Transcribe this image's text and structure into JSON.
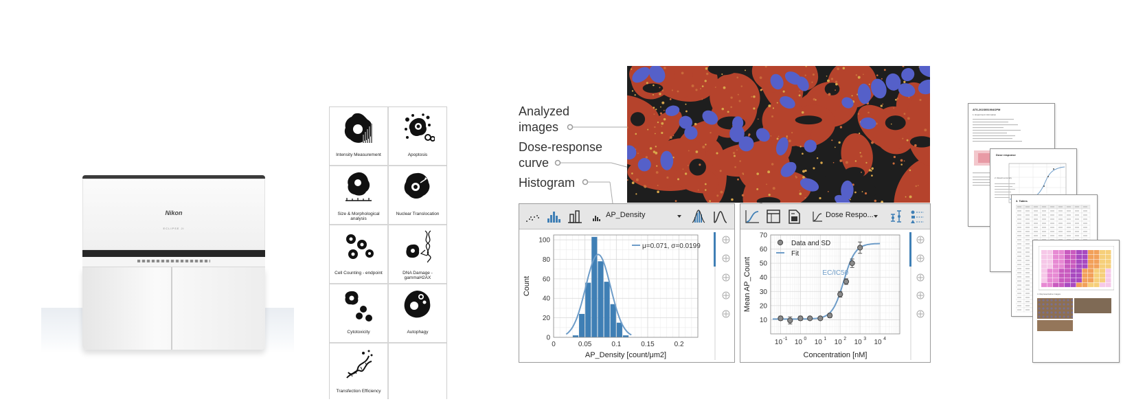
{
  "instrument": {
    "brand": "Nikon",
    "model": "ECLIPSE Ji"
  },
  "assays": [
    {
      "label": "Intensity Measurement",
      "icon": "intensity-measurement-icon"
    },
    {
      "label": "Apoptosis",
      "icon": "apoptosis-icon"
    },
    {
      "label": "Size & Morphological analysis",
      "icon": "morphology-icon"
    },
    {
      "label": "Nuclear Translocation",
      "icon": "nuclear-translocation-icon"
    },
    {
      "label": "Cell Counting - endpoint",
      "icon": "cell-counting-icon"
    },
    {
      "label": "DNA Damage - gammaH2AX",
      "icon": "dna-damage-icon"
    },
    {
      "label": "Cytotoxicity",
      "icon": "cytotoxicity-icon"
    },
    {
      "label": "Autophagy",
      "icon": "autophagy-icon"
    },
    {
      "label": "Transfection Efficiency",
      "icon": "transfection-icon"
    }
  ],
  "callouts": {
    "analyzed_line1": "Analyzed",
    "analyzed_line2": "images",
    "dose_line1": "Dose-response",
    "dose_line2": "curve",
    "histogram": "Histogram"
  },
  "histogram_panel": {
    "dropdown": "AP_Density",
    "icons": [
      "scatter-icon",
      "histogram-icon",
      "bar-chart-icon",
      "density-dropdown-icon",
      "distribution-fit-icon",
      "curve-icon"
    ]
  },
  "dose_panel": {
    "dropdown": "Dose Respo...",
    "icons": [
      "dose-curve-icon",
      "table-icon",
      "report-icon",
      "dose-dropdown-icon",
      "error-bar-icon",
      "style-icon"
    ]
  },
  "colors": {
    "bar": "#3f7fb5",
    "fit": "#6d9cc8",
    "micro_bg": "#1e1e1e",
    "cytoplasm": "#b5432c",
    "nucleus": "#5560c9"
  },
  "chart_data": [
    {
      "type": "bar",
      "xlabel": "AP_Density [count/μm2]",
      "ylabel": "Count",
      "xlim": [
        0,
        0.23
      ],
      "ylim": [
        0,
        105
      ],
      "xticks": [
        0,
        0.05,
        0.1,
        0.15,
        0.2
      ],
      "xtick_labels": [
        "0",
        "0.05",
        "0.1",
        "0.15",
        "0.2"
      ],
      "yticks": [
        0,
        20,
        40,
        60,
        80,
        100
      ],
      "bin_width": 0.01,
      "bins": [
        {
          "x0": 0.03,
          "value": 2
        },
        {
          "x0": 0.04,
          "value": 24
        },
        {
          "x0": 0.05,
          "value": 56
        },
        {
          "x0": 0.06,
          "value": 103
        },
        {
          "x0": 0.07,
          "value": 78
        },
        {
          "x0": 0.08,
          "value": 57
        },
        {
          "x0": 0.09,
          "value": 34
        },
        {
          "x0": 0.1,
          "value": 15
        },
        {
          "x0": 0.11,
          "value": 2
        }
      ],
      "fit": {
        "mu": 0.071,
        "sigma": 0.0199,
        "peak": 85
      },
      "legend": "μ=0.071, σ=0.0199",
      "grid": true,
      "legend_position": "top-right"
    },
    {
      "type": "scatter",
      "xlabel": "Concentration [nM]",
      "ylabel": "Mean AP_Count",
      "xscale": "log",
      "xlim_log10": [
        -1.5,
        5
      ],
      "ylim": [
        0,
        70
      ],
      "yticks": [
        10,
        20,
        30,
        40,
        50,
        60,
        70
      ],
      "xticks_log10": [
        -1,
        0,
        1,
        2,
        3,
        4
      ],
      "series": [
        {
          "name": "Data and SD",
          "x": [
            0.1,
            0.3,
            1,
            3,
            10,
            30,
            100,
            200,
            400,
            1000
          ],
          "y": [
            11,
            9.5,
            11,
            11,
            11,
            13,
            28,
            37,
            50,
            61
          ],
          "sd": [
            1.5,
            2.5,
            1.5,
            1,
            1,
            1.5,
            2,
            2,
            3,
            4
          ]
        },
        {
          "name": "Fit",
          "bottom": 10.5,
          "top": 64,
          "ec50": 150,
          "hill": 1.5
        }
      ],
      "annotation": "EC/IC50",
      "legend_position": "top-left",
      "grid": true
    }
  ],
  "report": {
    "title": "ATS-2023051904OPM",
    "section1": "1. Experiment information",
    "section2": "2. Result summary",
    "section3": "3. Tables",
    "section4": "4. Representative images",
    "dose_response": "Dose response"
  }
}
